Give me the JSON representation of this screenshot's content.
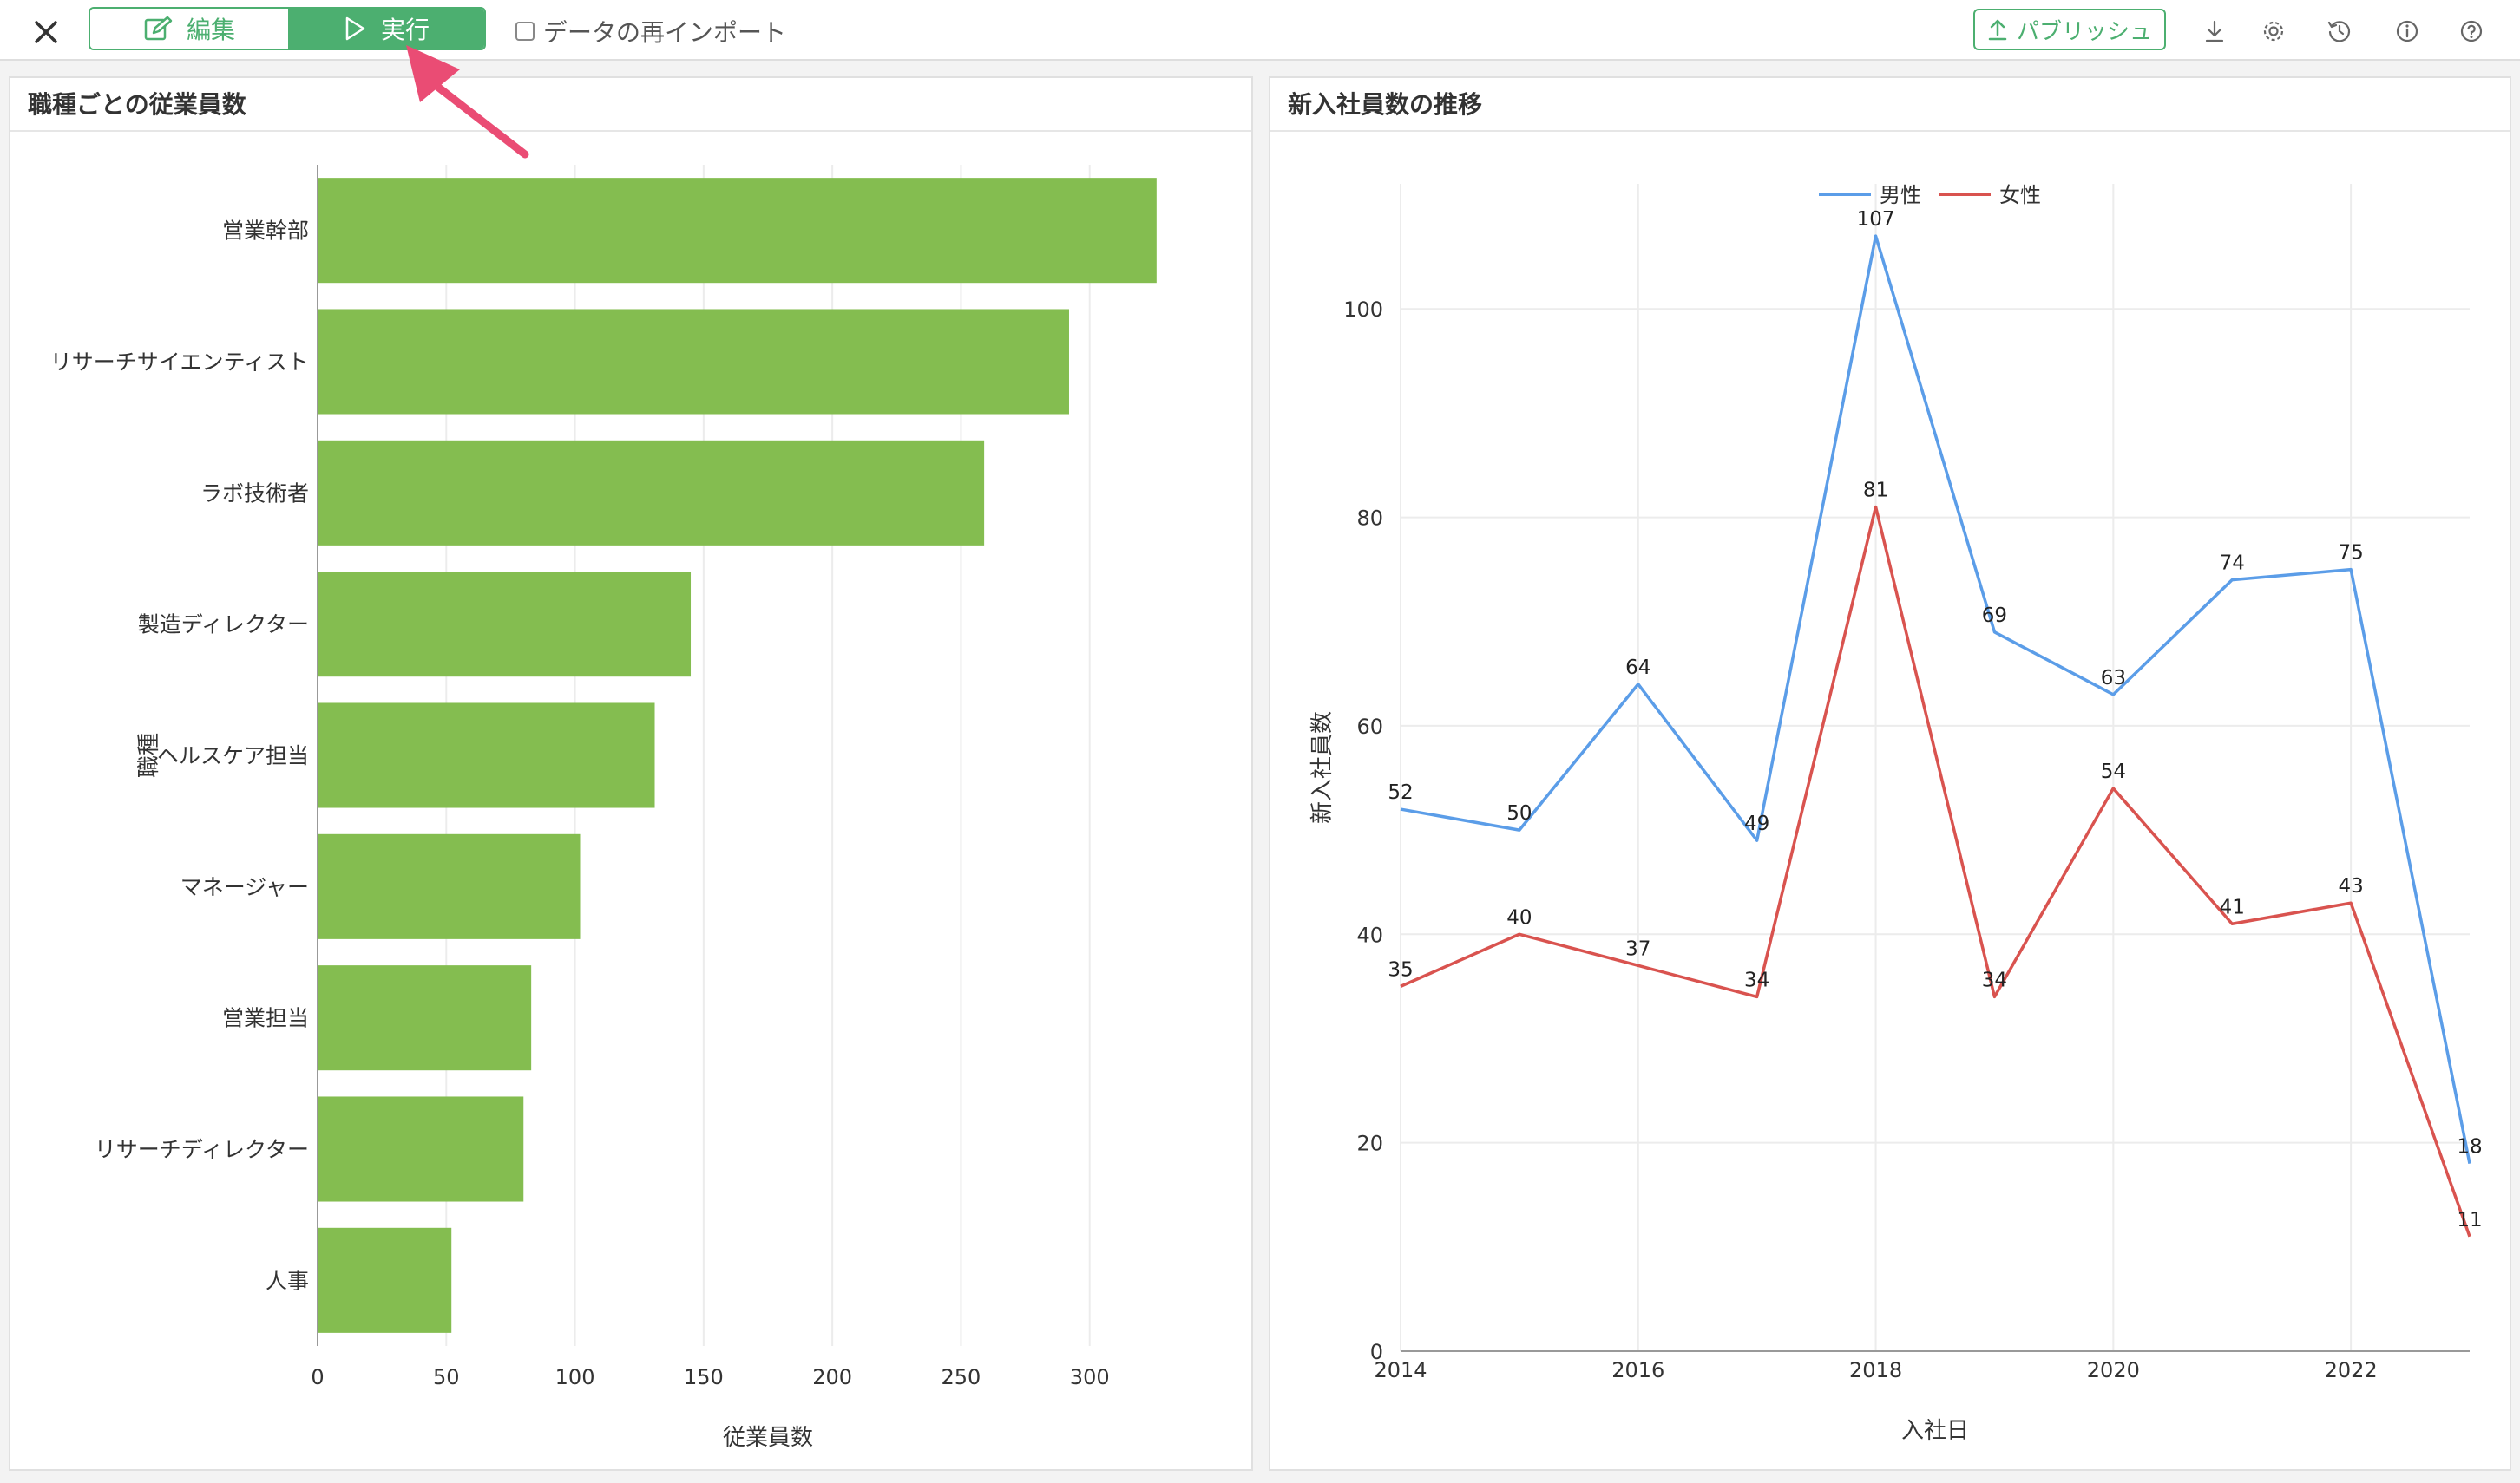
{
  "toolbar": {
    "edit_label": "編集",
    "run_label": "実行",
    "reimport_label": "データの再インポート",
    "publish_label": "パブリッシュ",
    "icons": [
      "close-icon",
      "edit-icon",
      "play-icon",
      "upload-icon",
      "download-icon",
      "gear-icon",
      "history-icon",
      "info-icon",
      "help-icon"
    ]
  },
  "colors": {
    "accent": "#4caf70",
    "bar": "#84bd50",
    "male": "#5b9de8",
    "female": "#d9534f",
    "arrow": "#ea4c74"
  },
  "left_panel": {
    "title": "職種ごとの従業員数"
  },
  "right_panel": {
    "title": "新入社員数の推移"
  },
  "chart_data": [
    {
      "type": "bar",
      "orientation": "horizontal",
      "title": "職種ごとの従業員数",
      "xlabel": "従業員数",
      "ylabel": "職種",
      "categories": [
        "営業幹部",
        "リサーチサイエンティスト",
        "ラボ技術者",
        "製造ディレクター",
        "ヘルスケア担当",
        "マネージャー",
        "営業担当",
        "リサーチディレクター",
        "人事"
      ],
      "values": [
        326,
        292,
        259,
        145,
        131,
        102,
        83,
        80,
        52
      ],
      "xlim": [
        0,
        350
      ],
      "xticks": [
        0,
        50,
        100,
        150,
        200,
        250,
        300
      ],
      "grid": true
    },
    {
      "type": "line",
      "title": "新入社員数の推移",
      "xlabel": "入社日",
      "ylabel": "新入社員数",
      "x": [
        2014,
        2015,
        2016,
        2017,
        2018,
        2019,
        2020,
        2021,
        2022,
        2023
      ],
      "series": [
        {
          "name": "男性",
          "values": [
            52,
            50,
            64,
            49,
            107,
            69,
            63,
            74,
            75,
            18
          ]
        },
        {
          "name": "女性",
          "values": [
            35,
            40,
            37,
            34,
            81,
            34,
            54,
            41,
            43,
            11
          ]
        }
      ],
      "xticks": [
        2014,
        2016,
        2018,
        2020,
        2022
      ],
      "yticks": [
        0,
        20,
        40,
        60,
        80,
        100
      ],
      "ylim": [
        0,
        112
      ],
      "legend": "top-center",
      "data_labels": true,
      "grid": true
    }
  ]
}
